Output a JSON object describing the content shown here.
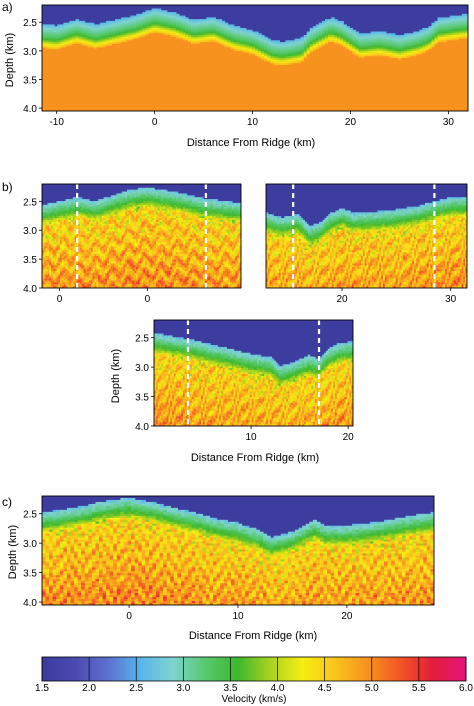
{
  "panel_labels": {
    "a": "a)",
    "b": "b)",
    "c": "c)"
  },
  "chart_data": [
    {
      "type": "heatmap",
      "panel": "a",
      "ylabel": "Depth (km)",
      "xlabel": "Distance From Ridge (km)",
      "xlim": [
        -11.5,
        32
      ],
      "ylim": [
        2.2,
        4.05
      ],
      "x_ticks": [
        -10,
        0,
        10,
        20,
        30
      ],
      "y_ticks": [
        2.5,
        3.0,
        3.5,
        4.0
      ],
      "seafloor": [
        [
          -11.5,
          2.55
        ],
        [
          -10,
          2.58
        ],
        [
          -8,
          2.47
        ],
        [
          -6,
          2.56
        ],
        [
          -4,
          2.48
        ],
        [
          -2,
          2.4
        ],
        [
          0,
          2.28
        ],
        [
          2,
          2.35
        ],
        [
          4,
          2.48
        ],
        [
          6,
          2.43
        ],
        [
          8,
          2.58
        ],
        [
          10,
          2.66
        ],
        [
          12,
          2.83
        ],
        [
          13,
          2.86
        ],
        [
          15,
          2.8
        ],
        [
          16,
          2.62
        ],
        [
          18,
          2.44
        ],
        [
          19,
          2.5
        ],
        [
          21,
          2.72
        ],
        [
          23,
          2.68
        ],
        [
          25,
          2.75
        ],
        [
          27,
          2.67
        ],
        [
          28,
          2.6
        ],
        [
          29,
          2.45
        ],
        [
          31,
          2.4
        ],
        [
          32,
          2.38
        ]
      ]
    },
    {
      "type": "heatmap",
      "panel": "b-left",
      "ylabel": "",
      "xlim": [
        -1.8,
        1.6
      ],
      "ylim": [
        2.2,
        4.0
      ],
      "x_ticks": [
        0,
        0
      ],
      "x_tick_positions": [
        -1.5,
        0
      ],
      "y_ticks": [
        2.5,
        3.0,
        3.5,
        4.0
      ],
      "markers": [
        -1.2,
        1.0
      ],
      "seafloor": [
        [
          -1.8,
          2.58
        ],
        [
          -1.5,
          2.52
        ],
        [
          -1.2,
          2.45
        ],
        [
          -0.9,
          2.52
        ],
        [
          -0.6,
          2.42
        ],
        [
          -0.3,
          2.32
        ],
        [
          0,
          2.28
        ],
        [
          0.3,
          2.33
        ],
        [
          0.6,
          2.38
        ],
        [
          0.9,
          2.46
        ],
        [
          1.2,
          2.5
        ],
        [
          1.6,
          2.55
        ]
      ]
    },
    {
      "type": "heatmap",
      "panel": "b-right",
      "xlim": [
        13,
        31.5
      ],
      "ylim": [
        2.2,
        4.0
      ],
      "x_ticks": [
        20,
        30
      ],
      "markers": [
        15.5,
        28.5
      ],
      "seafloor": [
        [
          13,
          2.72
        ],
        [
          14.5,
          2.8
        ],
        [
          16,
          2.74
        ],
        [
          17,
          2.95
        ],
        [
          18,
          2.88
        ],
        [
          19,
          2.72
        ],
        [
          20,
          2.64
        ],
        [
          21,
          2.72
        ],
        [
          23,
          2.7
        ],
        [
          25,
          2.66
        ],
        [
          27,
          2.6
        ],
        [
          28.5,
          2.52
        ],
        [
          30,
          2.45
        ],
        [
          31.5,
          2.44
        ]
      ]
    },
    {
      "type": "heatmap",
      "panel": "b-bottom",
      "ylabel": "Depth (km)",
      "xlabel": "Distance From Ridge (km)",
      "xlim": [
        0,
        20.5
      ],
      "ylim": [
        2.2,
        4.0
      ],
      "x_ticks": [
        10,
        20
      ],
      "y_ticks": [
        2.5,
        3.0,
        3.5,
        4.0
      ],
      "markers": [
        3.5,
        17
      ],
      "seafloor": [
        [
          0,
          2.44
        ],
        [
          2,
          2.5
        ],
        [
          4,
          2.56
        ],
        [
          6,
          2.64
        ],
        [
          8,
          2.72
        ],
        [
          10,
          2.8
        ],
        [
          12,
          2.85
        ],
        [
          13,
          3.0
        ],
        [
          14,
          2.96
        ],
        [
          16,
          2.82
        ],
        [
          17,
          2.88
        ],
        [
          18,
          2.7
        ],
        [
          19,
          2.62
        ],
        [
          20.5,
          2.58
        ]
      ]
    },
    {
      "type": "heatmap",
      "panel": "c",
      "ylabel": "Depth (km)",
      "xlabel": "Distance From Ridge (km)",
      "xlim": [
        -8,
        28
      ],
      "ylim": [
        2.2,
        4.05
      ],
      "x_ticks": [
        0,
        10,
        20
      ],
      "y_ticks": [
        2.5,
        3.0,
        3.5,
        4.0
      ],
      "seafloor": [
        [
          -8,
          2.5
        ],
        [
          -6,
          2.45
        ],
        [
          -4,
          2.38
        ],
        [
          -2,
          2.3
        ],
        [
          0,
          2.25
        ],
        [
          2,
          2.32
        ],
        [
          4,
          2.42
        ],
        [
          6,
          2.5
        ],
        [
          8,
          2.6
        ],
        [
          10,
          2.68
        ],
        [
          12,
          2.8
        ],
        [
          13,
          2.92
        ],
        [
          15,
          2.82
        ],
        [
          17,
          2.62
        ],
        [
          18,
          2.72
        ],
        [
          20,
          2.72
        ],
        [
          22,
          2.68
        ],
        [
          24,
          2.62
        ],
        [
          26,
          2.55
        ],
        [
          28,
          2.5
        ]
      ]
    }
  ],
  "colorbar": {
    "label": "Velocity (km/s)",
    "ticks": [
      "1.5",
      "2.0",
      "2.5",
      "3.0",
      "3.5",
      "4.0",
      "4.5",
      "5.0",
      "5.5",
      "6.0"
    ],
    "colors": [
      "#3b3b9e",
      "#4a4ab0",
      "#5e6fcf",
      "#57b4ea",
      "#7fd4cf",
      "#58c96f",
      "#3db82e",
      "#a8d321",
      "#f6ee12",
      "#f9c31c",
      "#f7921e",
      "#f25525",
      "#e21d3d",
      "#e4157c"
    ]
  }
}
